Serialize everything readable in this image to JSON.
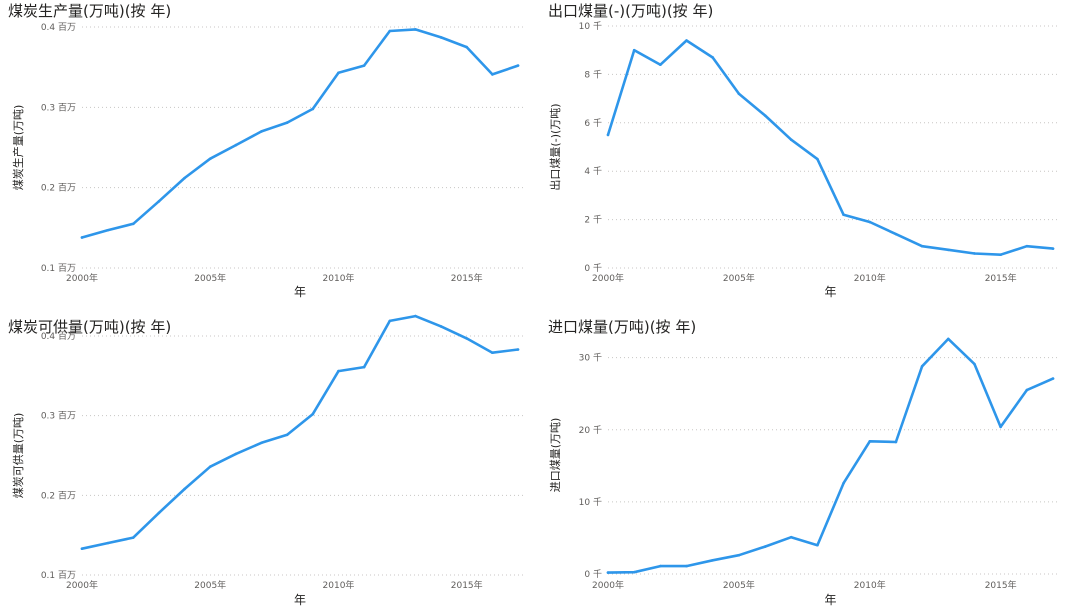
{
  "chart_data": [
    {
      "type": "line",
      "title": "煤炭生产量(万吨)(按 年)",
      "xlabel": "年",
      "ylabel": "煤炭生产量(万吨)",
      "x": [
        2000,
        2001,
        2002,
        2003,
        2004,
        2005,
        2006,
        2007,
        2008,
        2009,
        2010,
        2011,
        2012,
        2013,
        2014,
        2015,
        2016,
        2017
      ],
      "y_scale": 1000000,
      "ylim": [
        0.1,
        0.4
      ],
      "yticks": [
        0.1,
        0.2,
        0.3,
        0.4
      ],
      "ytick_labels": [
        "0.1 百万",
        "0.2 百万",
        "0.3 百万",
        "0.4 百万"
      ],
      "xticks": [
        2000,
        2005,
        2010,
        2015
      ],
      "xtick_labels": [
        "2000年",
        "2005年",
        "2010年",
        "2015年"
      ],
      "series": [
        {
          "values": [
            0.138,
            0.147,
            0.155,
            0.183,
            0.212,
            0.236,
            0.253,
            0.27,
            0.281,
            0.298,
            0.343,
            0.352,
            0.395,
            0.397,
            0.387,
            0.375,
            0.341,
            0.352
          ]
        }
      ]
    },
    {
      "type": "line",
      "title": "出口煤量(-)(万吨)(按 年)",
      "xlabel": "年",
      "ylabel": "出口煤量(-)(万吨)",
      "x": [
        2000,
        2001,
        2002,
        2003,
        2004,
        2005,
        2006,
        2007,
        2008,
        2009,
        2010,
        2011,
        2012,
        2013,
        2014,
        2015,
        2016,
        2017
      ],
      "y_scale": 1000,
      "ylim": [
        0,
        10
      ],
      "yticks": [
        0,
        2,
        4,
        6,
        8,
        10
      ],
      "ytick_labels": [
        "0 千",
        "2 千",
        "4 千",
        "6 千",
        "8 千",
        "10 千"
      ],
      "xticks": [
        2000,
        2005,
        2010,
        2015
      ],
      "xtick_labels": [
        "2000年",
        "2005年",
        "2010年",
        "2015年"
      ],
      "series": [
        {
          "values": [
            5.5,
            9.0,
            8.4,
            9.4,
            8.7,
            7.2,
            6.3,
            5.3,
            4.5,
            2.2,
            1.9,
            1.4,
            0.9,
            0.75,
            0.6,
            0.55,
            0.9,
            0.8
          ]
        }
      ]
    },
    {
      "type": "line",
      "title": "煤炭可供量(万吨)(按 年)",
      "xlabel": "年",
      "ylabel": "煤炭可供量(万吨)",
      "x": [
        2000,
        2001,
        2002,
        2003,
        2004,
        2005,
        2006,
        2007,
        2008,
        2009,
        2010,
        2011,
        2012,
        2013,
        2014,
        2015,
        2016,
        2017
      ],
      "y_scale": 1000000,
      "ylim": [
        0.1,
        0.4
      ],
      "yticks": [
        0.1,
        0.2,
        0.3,
        0.4
      ],
      "ytick_labels": [
        "0.1 百万",
        "0.2 百万",
        "0.3 百万",
        "0.4 百万"
      ],
      "xticks": [
        2000,
        2005,
        2010,
        2015
      ],
      "xtick_labels": [
        "2000年",
        "2005年",
        "2010年",
        "2015年"
      ],
      "series": [
        {
          "values": [
            0.133,
            0.14,
            0.147,
            0.178,
            0.208,
            0.236,
            0.252,
            0.266,
            0.276,
            0.302,
            0.356,
            0.361,
            0.419,
            0.425,
            0.412,
            0.397,
            0.379,
            0.383
          ]
        }
      ]
    },
    {
      "type": "line",
      "title": "进口煤量(万吨)(按 年)",
      "xlabel": "年",
      "ylabel": "进口煤量(万吨)",
      "x": [
        2000,
        2001,
        2002,
        2003,
        2004,
        2005,
        2006,
        2007,
        2008,
        2009,
        2010,
        2011,
        2012,
        2013,
        2014,
        2015,
        2016,
        2017
      ],
      "y_scale": 1000,
      "ylim": [
        0,
        33
      ],
      "yticks": [
        0,
        10,
        20,
        30
      ],
      "ytick_labels": [
        "0 千",
        "10 千",
        "20 千",
        "30 千"
      ],
      "xticks": [
        2000,
        2005,
        2010,
        2015
      ],
      "xtick_labels": [
        "2000年",
        "2005年",
        "2010年",
        "2015年"
      ],
      "series": [
        {
          "values": [
            0.2,
            0.25,
            1.1,
            1.1,
            1.9,
            2.6,
            3.8,
            5.1,
            4.0,
            12.6,
            18.4,
            18.3,
            28.8,
            32.6,
            29.1,
            20.4,
            25.5,
            27.1
          ]
        }
      ]
    }
  ]
}
